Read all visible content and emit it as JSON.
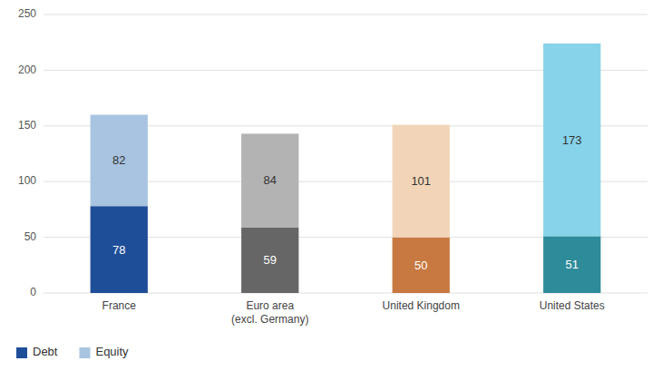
{
  "chart_data": {
    "type": "bar",
    "stacked": true,
    "data_labels": true,
    "grid": true,
    "legend": "lower left",
    "categories": [
      "France",
      "Euro area\n(excl. Germany)",
      "United Kingdom",
      "United States"
    ],
    "series": [
      {
        "name": "Debt",
        "color": "#1f4e99",
        "colors": [
          "#1f4e99",
          "#666666",
          "#c87941",
          "#2e8b9a"
        ],
        "values": [
          78,
          59,
          50,
          51
        ]
      },
      {
        "name": "Equity",
        "color": "#a8c4e0",
        "colors": [
          "#a8c4e0",
          "#b3b3b3",
          "#f2d5b8",
          "#87d3ea"
        ],
        "values": [
          82,
          84,
          101,
          173
        ]
      }
    ],
    "ylim": [
      0,
      250
    ],
    "yticks": [
      0,
      50,
      100,
      150,
      200,
      250
    ]
  }
}
